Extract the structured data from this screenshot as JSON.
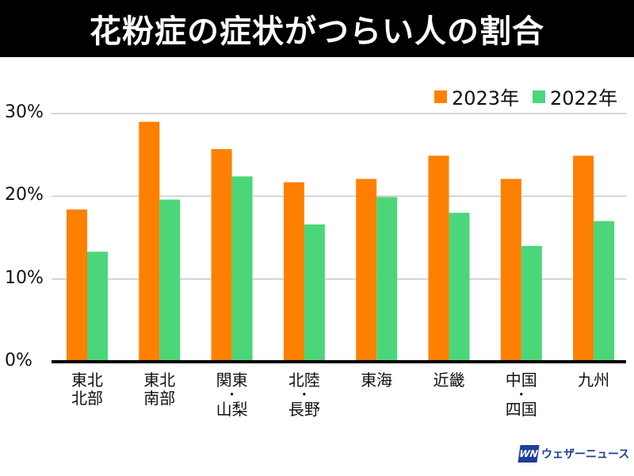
{
  "title": "花粉症の症状がつらい人の割合",
  "logo": {
    "mark": "WN",
    "text": "ウェザーニュース"
  },
  "chart_data": {
    "type": "bar",
    "title": "花粉症の症状がつらい人の割合",
    "categories": [
      [
        "東北",
        "北部"
      ],
      [
        "東北",
        "南部"
      ],
      [
        "関東",
        "・",
        "山梨"
      ],
      [
        "北陸",
        "・",
        "長野"
      ],
      [
        "東海"
      ],
      [
        "近畿"
      ],
      [
        "中国",
        "・",
        "四国"
      ],
      [
        "九州"
      ]
    ],
    "series": [
      {
        "name": "2023年",
        "color": "#ff8000",
        "values": [
          18.4,
          29.0,
          25.7,
          21.7,
          22.1,
          24.9,
          22.1,
          24.9
        ]
      },
      {
        "name": "2022年",
        "color": "#4cd67a",
        "values": [
          13.3,
          19.6,
          22.4,
          16.6,
          19.9,
          18.0,
          14.0,
          17.0
        ]
      }
    ],
    "yticks": [
      "0%",
      "10%",
      "20%",
      "30%"
    ],
    "ytick_values": [
      0,
      10,
      20,
      30
    ],
    "ylim": [
      0,
      30
    ],
    "grid": true,
    "legend": "top-right",
    "xlabel": "",
    "ylabel": ""
  }
}
